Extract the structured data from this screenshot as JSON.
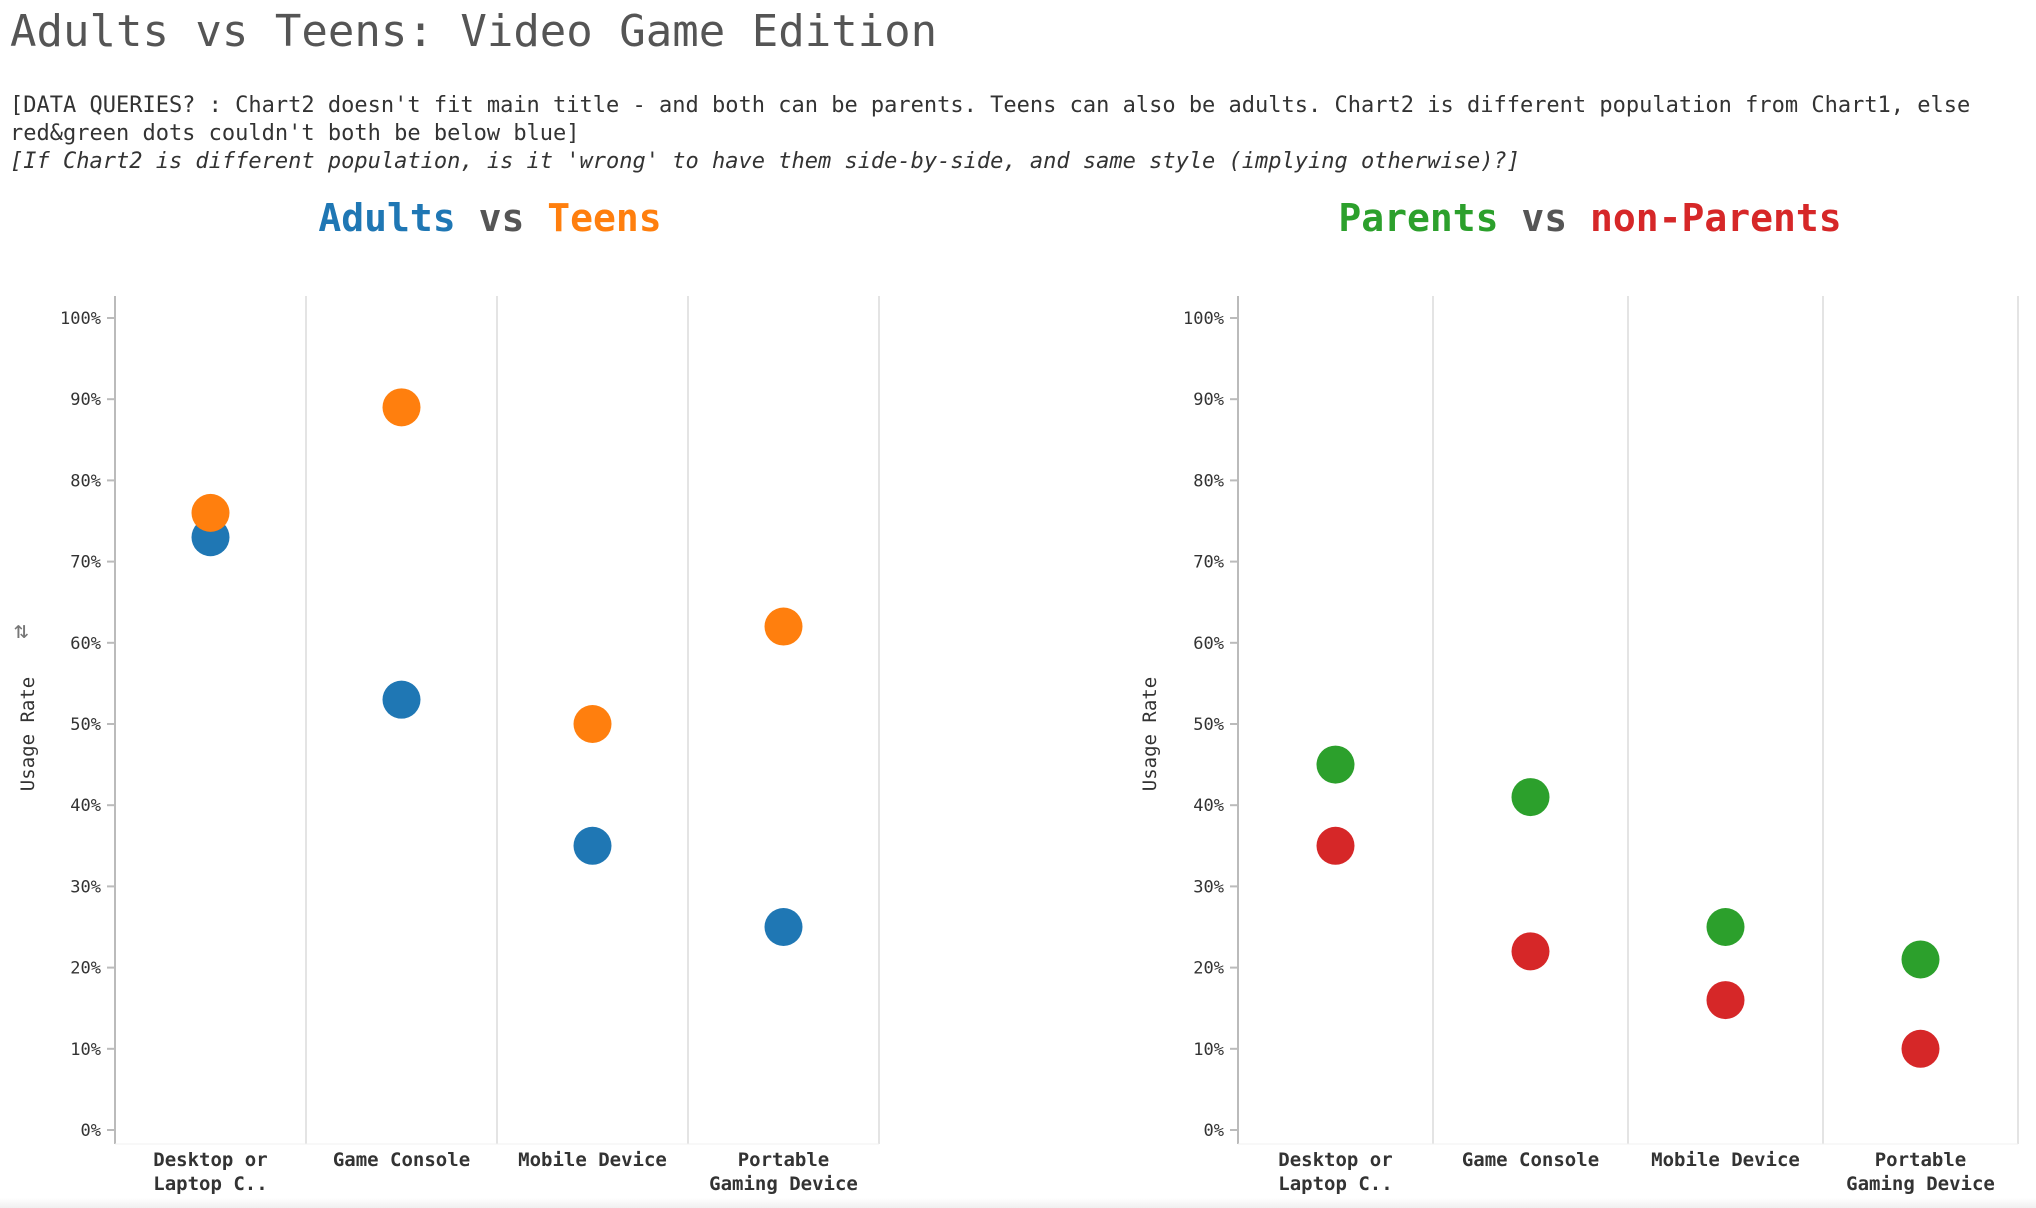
{
  "page": {
    "title": "Adults vs Teens: Video Game Edition",
    "note_line1": "[DATA QUERIES? : Chart2 doesn't fit main title - and both can be parents. Teens can also be adults. Chart2 is different population from Chart1, else red&green dots couldn't both be below blue]",
    "note_line2": "[If Chart2 is different population, is it 'wrong' to have them side-by-side, and same style (implying otherwise)?]"
  },
  "chart1_title": {
    "a": "Adults",
    "vs": "vs",
    "b": "Teens"
  },
  "chart2_title": {
    "a": "Parents",
    "vs": "vs",
    "b": "non-Parents"
  },
  "icons": {
    "sort": "sort-icon"
  },
  "chart_data": [
    {
      "type": "scatter",
      "title": "Adults vs Teens",
      "xlabel": "",
      "ylabel": "Usage Rate",
      "ylim": [
        0,
        100
      ],
      "yticks": [
        "0%",
        "10%",
        "20%",
        "30%",
        "40%",
        "50%",
        "60%",
        "70%",
        "80%",
        "90%",
        "100%"
      ],
      "categories": [
        [
          "Desktop or",
          "Laptop C.."
        ],
        [
          "Game Console"
        ],
        [
          "Mobile Device"
        ],
        [
          "Portable",
          "Gaming Device"
        ]
      ],
      "grid": "vertical lines between categories",
      "series": [
        {
          "name": "Adults",
          "color": "#1f77b4",
          "values": [
            73,
            53,
            35,
            25
          ]
        },
        {
          "name": "Teens",
          "color": "#ff7f0e",
          "values": [
            76,
            89,
            50,
            62
          ]
        }
      ]
    },
    {
      "type": "scatter",
      "title": "Parents vs non-Parents",
      "xlabel": "",
      "ylabel": "Usage Rate",
      "ylim": [
        0,
        100
      ],
      "yticks": [
        "0%",
        "10%",
        "20%",
        "30%",
        "40%",
        "50%",
        "60%",
        "70%",
        "80%",
        "90%",
        "100%"
      ],
      "categories": [
        [
          "Desktop or",
          "Laptop C.."
        ],
        [
          "Game Console"
        ],
        [
          "Mobile Device"
        ],
        [
          "Portable",
          "Gaming Device"
        ]
      ],
      "grid": "vertical lines between categories",
      "series": [
        {
          "name": "Parents",
          "color": "#2ca02c",
          "values": [
            45,
            41,
            25,
            21
          ]
        },
        {
          "name": "non-Parents",
          "color": "#d62728",
          "values": [
            35,
            22,
            16,
            10
          ]
        }
      ]
    }
  ]
}
